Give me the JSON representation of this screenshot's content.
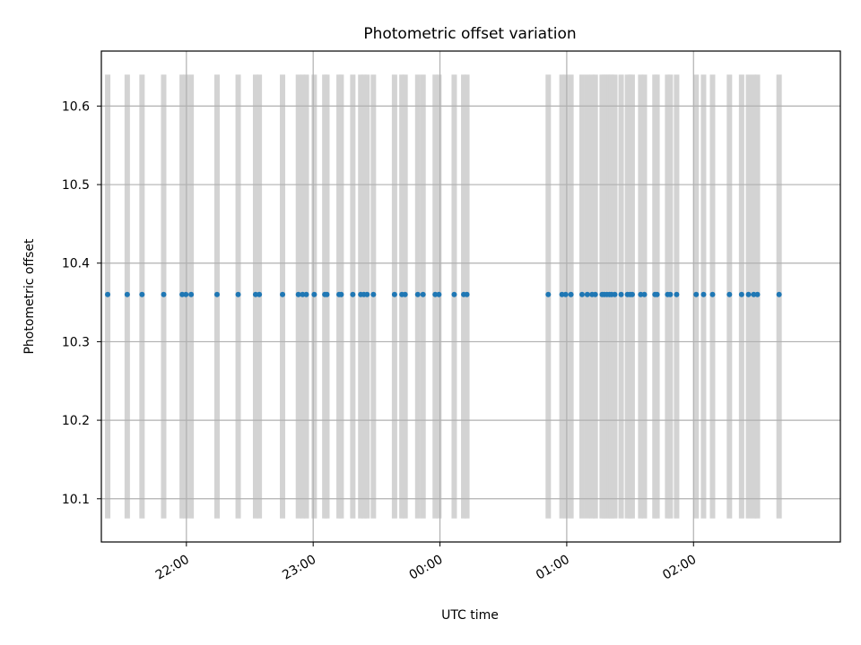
{
  "chart_data": {
    "type": "scatter",
    "title": "Photometric offset variation",
    "xlabel": "UTC time",
    "ylabel": "Photometric offset",
    "ylim": [
      10.045,
      10.67
    ],
    "xlim": [
      "21:19:45",
      "03:09:30"
    ],
    "x_ticks": [
      {
        "time": "22:00",
        "label": "22:00"
      },
      {
        "time": "23:00",
        "label": "23:00"
      },
      {
        "time": "00:00",
        "label": "00:00"
      },
      {
        "time": "01:00",
        "label": "01:00"
      },
      {
        "time": "02:00",
        "label": "02:00"
      }
    ],
    "y_ticks": [
      {
        "value": 10.1,
        "label": "10.1"
      },
      {
        "value": 10.2,
        "label": "10.2"
      },
      {
        "value": 10.3,
        "label": "10.3"
      },
      {
        "value": 10.4,
        "label": "10.4"
      },
      {
        "value": 10.5,
        "label": "10.5"
      },
      {
        "value": 10.6,
        "label": "10.6"
      }
    ],
    "grid": true,
    "marker_color": "#1f77b4",
    "band_color": "#d3d3d3",
    "band_range": [
      10.075,
      10.64
    ],
    "series": [
      {
        "y_value": 10.36,
        "x": [
          "21:22:45",
          "21:32:00",
          "21:39:00",
          "21:49:15",
          "21:58:00",
          "21:59:45",
          "22:02:15",
          "22:14:30",
          "22:24:30",
          "22:32:45",
          "22:34:30",
          "22:45:30",
          "22:53:00",
          "22:55:00",
          "22:56:45",
          "23:00:30",
          "23:05:30",
          "23:06:30",
          "23:12:15",
          "23:13:15",
          "23:18:45",
          "23:22:30",
          "23:24:00",
          "23:25:30",
          "23:28:30",
          "23:38:30",
          "23:42:00",
          "23:43:30",
          "23:49:30",
          "23:52:00",
          "23:57:45",
          "23:59:30",
          "00:06:45",
          "00:11:15",
          "00:12:45",
          "00:51:15",
          "00:57:45",
          "00:59:30",
          "01:02:00",
          "01:07:15",
          "01:09:45",
          "01:12:00",
          "01:13:30",
          "01:16:45",
          "01:17:45",
          "01:19:00",
          "01:20:15",
          "01:21:15",
          "01:22:45",
          "01:25:45",
          "01:28:45",
          "01:30:00",
          "01:31:00",
          "01:35:00",
          "01:36:45",
          "01:41:45",
          "01:42:45",
          "01:47:45",
          "01:49:00",
          "01:52:00",
          "02:01:15",
          "02:04:45",
          "02:09:00",
          "02:17:00",
          "02:22:45",
          "02:26:00",
          "02:28:30",
          "02:30:15",
          "02:40:30"
        ]
      }
    ]
  }
}
